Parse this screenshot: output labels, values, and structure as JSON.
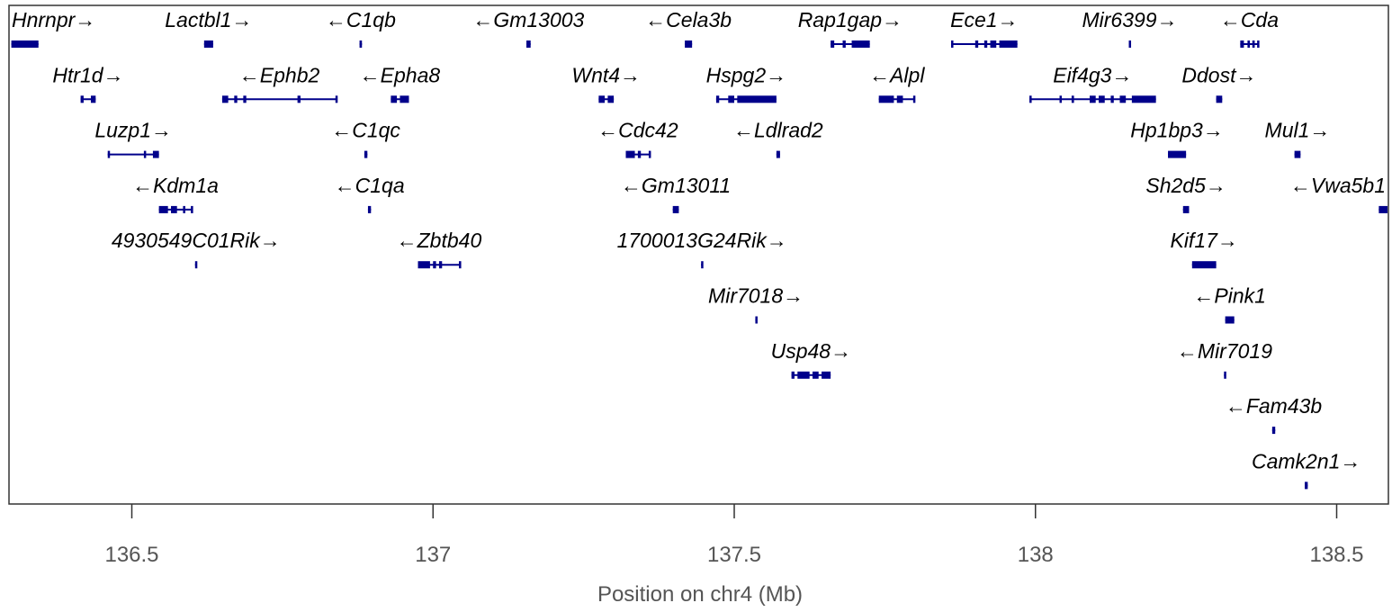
{
  "chart_data": {
    "type": "gene-track",
    "xlabel": "Position on chr4 (Mb)",
    "xlim": [
      136.3,
      138.6
    ],
    "x_ticks": [
      136.5,
      137,
      137.5,
      138,
      138.5
    ],
    "x_tick_labels": [
      "136.5",
      "137",
      "137.5",
      "138",
      "138.5"
    ],
    "grid": false,
    "colors": {
      "gene": "#00008b",
      "text": "#000000",
      "axis_text": "#555555",
      "frame": "#333333"
    },
    "genes": [
      {
        "name": "Hnrnpr",
        "strand": "+",
        "row": 0,
        "start": 136.3,
        "end": 136.345,
        "exons": [
          [
            136.3,
            136.345
          ]
        ]
      },
      {
        "name": "Lactbl1",
        "strand": "+",
        "row": 0,
        "start": 136.62,
        "end": 136.635,
        "exons": [
          [
            136.62,
            136.635
          ]
        ]
      },
      {
        "name": "C1qb",
        "strand": "-",
        "row": 0,
        "start": 136.878,
        "end": 136.882,
        "exons": [
          [
            136.878,
            136.882
          ]
        ]
      },
      {
        "name": "Gm13003",
        "strand": "-",
        "row": 0,
        "start": 137.155,
        "end": 137.162,
        "exons": [
          [
            137.155,
            137.162
          ]
        ]
      },
      {
        "name": "Cela3b",
        "strand": "-",
        "row": 0,
        "start": 137.418,
        "end": 137.43,
        "exons": [
          [
            137.418,
            137.43
          ]
        ]
      },
      {
        "name": "Rap1gap",
        "strand": "+",
        "row": 0,
        "start": 137.66,
        "end": 137.725,
        "exons": [
          [
            137.66,
            137.666
          ],
          [
            137.68,
            137.685
          ],
          [
            137.695,
            137.725
          ]
        ]
      },
      {
        "name": "Ece1",
        "strand": "+",
        "row": 0,
        "start": 137.86,
        "end": 137.97,
        "exons": [
          [
            137.86,
            137.863
          ],
          [
            137.9,
            137.905
          ],
          [
            137.915,
            137.92
          ],
          [
            137.925,
            137.935
          ],
          [
            137.94,
            137.97
          ]
        ]
      },
      {
        "name": "Mir6399",
        "strand": "+",
        "row": 0,
        "start": 138.155,
        "end": 138.158,
        "exons": [
          [
            138.155,
            138.158
          ]
        ]
      },
      {
        "name": "Cda",
        "strand": "-",
        "row": 0,
        "start": 138.34,
        "end": 138.37,
        "exons": [
          [
            138.34,
            138.346
          ],
          [
            138.352,
            138.356
          ],
          [
            138.36,
            138.364
          ],
          [
            138.368,
            138.37
          ]
        ]
      },
      {
        "name": "Htr1d",
        "strand": "+",
        "row": 1,
        "start": 136.415,
        "end": 136.44,
        "exons": [
          [
            136.415,
            136.42
          ],
          [
            136.432,
            136.44
          ]
        ]
      },
      {
        "name": "Ephb2",
        "strand": "-",
        "row": 1,
        "start": 136.65,
        "end": 136.84,
        "exons": [
          [
            136.65,
            136.66
          ],
          [
            136.67,
            136.675
          ],
          [
            136.685,
            136.69
          ],
          [
            136.775,
            136.78
          ],
          [
            136.838,
            136.84
          ]
        ]
      },
      {
        "name": "Epha8",
        "strand": "-",
        "row": 1,
        "start": 136.93,
        "end": 136.96,
        "exons": [
          [
            136.93,
            136.94
          ],
          [
            136.945,
            136.96
          ]
        ]
      },
      {
        "name": "Wnt4",
        "strand": "+",
        "row": 1,
        "start": 137.275,
        "end": 137.3,
        "exons": [
          [
            137.275,
            137.285
          ],
          [
            137.29,
            137.3
          ]
        ]
      },
      {
        "name": "Hspg2",
        "strand": "+",
        "row": 1,
        "start": 137.47,
        "end": 137.57,
        "exons": [
          [
            137.47,
            137.475
          ],
          [
            137.49,
            137.5
          ],
          [
            137.505,
            137.57
          ]
        ]
      },
      {
        "name": "Alpl",
        "strand": "-",
        "row": 1,
        "start": 137.74,
        "end": 137.8,
        "exons": [
          [
            137.74,
            137.765
          ],
          [
            137.77,
            137.78
          ],
          [
            137.797,
            137.8
          ]
        ]
      },
      {
        "name": "Eif4g3",
        "strand": "+",
        "row": 1,
        "start": 137.99,
        "end": 138.2,
        "exons": [
          [
            137.99,
            137.993
          ],
          [
            138.04,
            138.042
          ],
          [
            138.06,
            138.064
          ],
          [
            138.09,
            138.1
          ],
          [
            138.105,
            138.115
          ],
          [
            138.125,
            138.13
          ],
          [
            138.14,
            138.15
          ],
          [
            138.16,
            138.2
          ]
        ]
      },
      {
        "name": "Ddost",
        "strand": "+",
        "row": 1,
        "start": 138.3,
        "end": 138.31,
        "exons": [
          [
            138.3,
            138.31
          ]
        ]
      },
      {
        "name": "Luzp1",
        "strand": "+",
        "row": 2,
        "start": 136.46,
        "end": 136.545,
        "exons": [
          [
            136.46,
            136.462
          ],
          [
            136.52,
            136.522
          ],
          [
            136.535,
            136.545
          ]
        ]
      },
      {
        "name": "C1qc",
        "strand": "-",
        "row": 2,
        "start": 136.886,
        "end": 136.891,
        "exons": [
          [
            136.886,
            136.891
          ]
        ]
      },
      {
        "name": "Cdc42",
        "strand": "-",
        "row": 2,
        "start": 137.32,
        "end": 137.36,
        "exons": [
          [
            137.32,
            137.335
          ],
          [
            137.34,
            137.345
          ],
          [
            137.358,
            137.36
          ]
        ]
      },
      {
        "name": "Ldlrad2",
        "strand": "-",
        "row": 2,
        "start": 137.57,
        "end": 137.576,
        "exons": [
          [
            137.57,
            137.576
          ]
        ]
      },
      {
        "name": "Hp1bp3",
        "strand": "+",
        "row": 2,
        "start": 138.22,
        "end": 138.25,
        "exons": [
          [
            138.22,
            138.25
          ]
        ]
      },
      {
        "name": "Mul1",
        "strand": "+",
        "row": 2,
        "start": 138.43,
        "end": 138.44,
        "exons": [
          [
            138.43,
            138.44
          ]
        ]
      },
      {
        "name": "Kdm1a",
        "strand": "-",
        "row": 3,
        "start": 136.545,
        "end": 136.6,
        "exons": [
          [
            136.545,
            136.56
          ],
          [
            136.565,
            136.575
          ],
          [
            136.585,
            136.587
          ],
          [
            136.598,
            136.6
          ]
        ]
      },
      {
        "name": "C1qa",
        "strand": "-",
        "row": 3,
        "start": 136.892,
        "end": 136.897,
        "exons": [
          [
            136.892,
            136.897
          ]
        ]
      },
      {
        "name": "Gm13011",
        "strand": "-",
        "row": 3,
        "start": 137.398,
        "end": 137.408,
        "exons": [
          [
            137.398,
            137.408
          ]
        ]
      },
      {
        "name": "Sh2d5",
        "strand": "+",
        "row": 3,
        "start": 138.245,
        "end": 138.255,
        "exons": [
          [
            138.245,
            138.255
          ]
        ]
      },
      {
        "name": "Vwa5b1",
        "strand": "-",
        "row": 3,
        "start": 138.57,
        "end": 138.6,
        "exons": [
          [
            138.57,
            138.6
          ]
        ]
      },
      {
        "name": "4930549C01Rik",
        "strand": "+",
        "row": 4,
        "start": 136.605,
        "end": 136.608,
        "exons": [
          [
            136.605,
            136.608
          ]
        ]
      },
      {
        "name": "Zbtb40",
        "strand": "-",
        "row": 4,
        "start": 136.975,
        "end": 137.045,
        "exons": [
          [
            136.975,
            136.995
          ],
          [
            137.0,
            137.005
          ],
          [
            137.01,
            137.015
          ],
          [
            137.043,
            137.045
          ]
        ]
      },
      {
        "name": "1700013G24Rik",
        "strand": "+",
        "row": 4,
        "start": 137.445,
        "end": 137.448,
        "exons": [
          [
            137.445,
            137.448
          ]
        ]
      },
      {
        "name": "Kif17",
        "strand": "+",
        "row": 4,
        "start": 138.26,
        "end": 138.3,
        "exons": [
          [
            138.26,
            138.3
          ]
        ]
      },
      {
        "name": "Mir7018",
        "strand": "+",
        "row": 5,
        "start": 137.535,
        "end": 137.537,
        "exons": [
          [
            137.535,
            137.537
          ]
        ]
      },
      {
        "name": "Pink1",
        "strand": "-",
        "row": 5,
        "start": 138.315,
        "end": 138.33,
        "exons": [
          [
            138.315,
            138.33
          ]
        ]
      },
      {
        "name": "Usp48",
        "strand": "+",
        "row": 6,
        "start": 137.595,
        "end": 137.66,
        "exons": [
          [
            137.595,
            137.6
          ],
          [
            137.605,
            137.625
          ],
          [
            137.63,
            137.64
          ],
          [
            137.645,
            137.66
          ]
        ]
      },
      {
        "name": "Mir7019",
        "strand": "-",
        "row": 6,
        "start": 138.313,
        "end": 138.315,
        "exons": [
          [
            138.313,
            138.315
          ]
        ]
      },
      {
        "name": "Fam43b",
        "strand": "-",
        "row": 7,
        "start": 138.393,
        "end": 138.398,
        "exons": [
          [
            138.393,
            138.398
          ]
        ]
      },
      {
        "name": "Camk2n1",
        "strand": "+",
        "row": 8,
        "start": 138.447,
        "end": 138.452,
        "exons": [
          [
            138.447,
            138.452
          ]
        ]
      }
    ]
  }
}
